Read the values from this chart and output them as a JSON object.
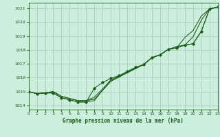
{
  "title": "Graphe pression niveau de la mer (hPa)",
  "background_color": "#cceedd",
  "grid_color": "#b0ccbb",
  "line_color": "#1a5c1a",
  "xlim": [
    0,
    23
  ],
  "ylim": [
    1013.7,
    1021.4
  ],
  "yticks": [
    1014,
    1015,
    1016,
    1017,
    1018,
    1019,
    1020,
    1021
  ],
  "xticks": [
    0,
    1,
    2,
    3,
    4,
    5,
    6,
    7,
    8,
    9,
    10,
    11,
    12,
    13,
    14,
    15,
    16,
    17,
    18,
    19,
    20,
    21,
    22,
    23
  ],
  "series": [
    [
      1015.0,
      1014.85,
      1014.9,
      1015.0,
      1014.65,
      1014.5,
      1014.35,
      1014.35,
      1014.45,
      1015.1,
      1015.75,
      1016.05,
      1016.35,
      1016.65,
      1016.95,
      1017.45,
      1017.65,
      1018.05,
      1018.15,
      1018.9,
      1019.4,
      1020.45,
      1020.95,
      1021.1
    ],
    [
      1015.0,
      1014.85,
      1014.9,
      1015.0,
      1014.65,
      1014.5,
      1014.35,
      1014.35,
      1014.6,
      1015.2,
      1015.85,
      1016.1,
      1016.4,
      1016.7,
      1016.95,
      1017.45,
      1017.65,
      1018.05,
      1018.15,
      1018.35,
      1018.45,
      1019.35,
      1020.95,
      1021.1
    ],
    [
      1015.0,
      1014.85,
      1014.9,
      1014.9,
      1014.55,
      1014.4,
      1014.25,
      1014.25,
      1014.35,
      1015.1,
      1015.75,
      1016.05,
      1016.4,
      1016.7,
      1016.95,
      1017.45,
      1017.65,
      1018.05,
      1018.25,
      1018.35,
      1018.95,
      1020.15,
      1020.95,
      1021.1
    ]
  ],
  "marker_series": [
    1015.0,
    1014.85,
    1014.9,
    1014.9,
    1014.55,
    1014.4,
    1014.25,
    1014.25,
    1015.25,
    1015.65,
    1015.95,
    1016.15,
    1016.45,
    1016.75,
    1016.95,
    1017.45,
    1017.65,
    1018.05,
    1018.15,
    1018.35,
    1018.45,
    1019.35,
    1020.95,
    1021.1
  ]
}
